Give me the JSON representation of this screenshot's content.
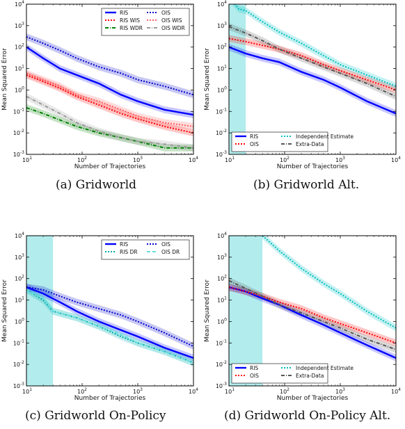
{
  "chart_data": [
    {
      "type": "line",
      "caption": "(a) Gridworld",
      "xlabel": "Number of Trajectories",
      "ylabel": "Mean Squared Error",
      "xscale": "log",
      "yscale": "log",
      "xlim": [
        10,
        10000
      ],
      "ylim": [
        0.001,
        10000
      ],
      "xticks": [
        "10^1",
        "10^2",
        "10^3",
        "10^4"
      ],
      "yticks": [
        "10^-3",
        "10^-2",
        "10^-1",
        "10^0",
        "10^1",
        "10^2",
        "10^3",
        "10^4"
      ],
      "legend_position": "top-right",
      "legend_columns": 2,
      "series": [
        {
          "name": "RIS",
          "color": "#0000ff",
          "style": "solid",
          "x": [
            10,
            20,
            40,
            80,
            200,
            500,
            1000,
            3000,
            10000
          ],
          "y": [
            100,
            30,
            10,
            5,
            2,
            0.6,
            0.3,
            0.12,
            0.07
          ]
        },
        {
          "name": "RIS WIS",
          "color": "#ff0000",
          "style": "dotted",
          "x": [
            10,
            20,
            40,
            80,
            200,
            500,
            1000,
            3000,
            10000
          ],
          "y": [
            5,
            2.5,
            1.2,
            0.5,
            0.2,
            0.08,
            0.045,
            0.02,
            0.01
          ]
        },
        {
          "name": "RIS WDR",
          "color": "#008000",
          "style": "dashdot",
          "x": [
            10,
            20,
            40,
            80,
            200,
            500,
            1000,
            3000,
            10000
          ],
          "y": [
            0.15,
            0.08,
            0.04,
            0.02,
            0.01,
            0.006,
            0.004,
            0.002,
            0.002
          ]
        },
        {
          "name": "OIS",
          "color": "#0000cc",
          "style": "dotted",
          "x": [
            10,
            20,
            40,
            80,
            200,
            500,
            1000,
            3000,
            10000
          ],
          "y": [
            300,
            150,
            70,
            30,
            12,
            6,
            3,
            1.5,
            0.6
          ]
        },
        {
          "name": "OIS WIS",
          "color": "#ff6060",
          "style": "dotted",
          "x": [
            10,
            20,
            40,
            80,
            200,
            500,
            1000,
            3000,
            10000
          ],
          "y": [
            6,
            3,
            1.5,
            0.6,
            0.3,
            0.12,
            0.06,
            0.03,
            0.02
          ]
        },
        {
          "name": "OIS WDR",
          "color": "#999999",
          "style": "dashdot",
          "x": [
            10,
            20,
            40,
            80,
            200,
            500,
            1000,
            3000,
            10000
          ],
          "y": [
            0.5,
            0.2,
            0.08,
            0.03,
            0.012,
            0.006,
            0.004,
            0.003,
            0.002
          ]
        }
      ]
    },
    {
      "type": "line",
      "caption": "(b) Gridworld Alt.",
      "xlabel": "Number of Trajectories",
      "ylabel": "Mean Squared Error",
      "xscale": "log",
      "yscale": "log",
      "xlim": [
        10,
        10000
      ],
      "ylim": [
        0.001,
        10000
      ],
      "xticks": [
        "10^1",
        "10^2",
        "10^3",
        "10^4"
      ],
      "yticks": [
        "10^-3",
        "10^-2",
        "10^-1",
        "10^0",
        "10^1",
        "10^2",
        "10^3",
        "10^4"
      ],
      "legend_position": "bottom-right",
      "legend_columns": 2,
      "series": [
        {
          "name": "RIS",
          "color": "#0000ff",
          "style": "solid",
          "x": [
            10,
            20,
            40,
            80,
            200,
            500,
            1000,
            3000,
            10000
          ],
          "y": [
            100,
            50,
            30,
            20,
            7,
            3,
            1.3,
            0.3,
            0.08
          ]
        },
        {
          "name": "OIS",
          "color": "#ff0000",
          "style": "dotted",
          "x": [
            10,
            20,
            40,
            80,
            200,
            500,
            1000,
            3000,
            10000
          ],
          "y": [
            250,
            180,
            120,
            80,
            40,
            15,
            8,
            3,
            1
          ]
        },
        {
          "name": "Independent Estimate",
          "color": "#00bfbf",
          "style": "dotted",
          "x": [
            10,
            12,
            15,
            20,
            40,
            80,
            200,
            500,
            1000,
            3000,
            10000
          ],
          "y": [
            20000,
            12000,
            6000,
            5000,
            1500,
            500,
            150,
            40,
            15,
            5,
            1.5
          ]
        },
        {
          "name": "Extra-Data",
          "color": "#555555",
          "style": "dashdot",
          "x": [
            10,
            20,
            40,
            80,
            200,
            500,
            1000,
            3000,
            10000
          ],
          "y": [
            900,
            450,
            200,
            80,
            30,
            12,
            6,
            2,
            0.5
          ]
        }
      ]
    },
    {
      "type": "line",
      "caption": "(c) Gridworld On-Policy",
      "xlabel": "Number of Trajectories",
      "ylabel": "Mean Squared Error",
      "xscale": "log",
      "yscale": "log",
      "xlim": [
        10,
        10000
      ],
      "ylim": [
        0.001,
        10000
      ],
      "xticks": [
        "10^1",
        "10^2",
        "10^3",
        "10^4"
      ],
      "yticks": [
        "10^-3",
        "10^-2",
        "10^-1",
        "10^0",
        "10^1",
        "10^2",
        "10^3",
        "10^4"
      ],
      "legend_position": "top-right",
      "legend_columns": 2,
      "series": [
        {
          "name": "RIS",
          "color": "#0000ff",
          "style": "solid",
          "x": [
            10,
            20,
            40,
            80,
            200,
            500,
            1000,
            3000,
            10000
          ],
          "y": [
            40,
            20,
            8,
            3,
            1,
            0.4,
            0.2,
            0.06,
            0.02
          ]
        },
        {
          "name": "RIS DR",
          "color": "#00aaaa",
          "style": "dotted",
          "x": [
            10,
            20,
            30,
            80,
            200,
            500,
            1000,
            3000,
            10000
          ],
          "y": [
            30,
            10,
            3,
            1.5,
            0.6,
            0.2,
            0.1,
            0.04,
            0.012
          ]
        },
        {
          "name": "OIS",
          "color": "#0000cc",
          "style": "dotted",
          "x": [
            10,
            20,
            40,
            80,
            200,
            500,
            1000,
            3000,
            10000
          ],
          "y": [
            40,
            30,
            15,
            8,
            4,
            2,
            1,
            0.3,
            0.07
          ]
        },
        {
          "name": "OIS DR",
          "color": "#66dddd",
          "style": "dashed",
          "x": [
            10,
            20,
            30,
            80,
            200,
            500,
            1000,
            3000,
            10000
          ],
          "y": [
            30,
            12,
            3,
            1.5,
            0.6,
            0.25,
            0.1,
            0.04,
            0.012
          ]
        }
      ]
    },
    {
      "type": "line",
      "caption": "(d) Gridworld On-Policy Alt.",
      "xlabel": "Number of Trajectories",
      "ylabel": "Mean Squared Error",
      "xscale": "log",
      "yscale": "log",
      "xlim": [
        10,
        10000
      ],
      "ylim": [
        0.001,
        10000
      ],
      "xticks": [
        "10^1",
        "10^2",
        "10^3",
        "10^4"
      ],
      "yticks": [
        "10^-3",
        "10^-2",
        "10^-1",
        "10^0",
        "10^1",
        "10^2",
        "10^3",
        "10^4"
      ],
      "legend_position": "bottom-right",
      "legend_columns": 2,
      "series": [
        {
          "name": "RIS",
          "color": "#0000ff",
          "style": "solid",
          "x": [
            10,
            20,
            40,
            80,
            200,
            500,
            1000,
            3000,
            10000
          ],
          "y": [
            40,
            25,
            12,
            6,
            2,
            0.7,
            0.3,
            0.08,
            0.02
          ]
        },
        {
          "name": "OIS",
          "color": "#ff0000",
          "style": "dotted",
          "x": [
            10,
            20,
            40,
            80,
            200,
            500,
            1000,
            3000,
            10000
          ],
          "y": [
            40,
            25,
            15,
            8,
            4,
            1.5,
            0.8,
            0.3,
            0.1
          ]
        },
        {
          "name": "Independent Estimate",
          "color": "#00bfbf",
          "style": "dotted",
          "x": [
            40,
            50,
            80,
            200,
            500,
            1000,
            3000,
            10000
          ],
          "y": [
            10000,
            6000,
            2000,
            300,
            60,
            20,
            3,
            0.5
          ]
        },
        {
          "name": "Extra-Data",
          "color": "#555555",
          "style": "dashdot",
          "x": [
            10,
            20,
            40,
            80,
            200,
            500,
            1000,
            3000,
            10000
          ],
          "y": [
            80,
            35,
            15,
            6,
            2.5,
            1,
            0.5,
            0.15,
            0.05
          ]
        }
      ]
    }
  ]
}
